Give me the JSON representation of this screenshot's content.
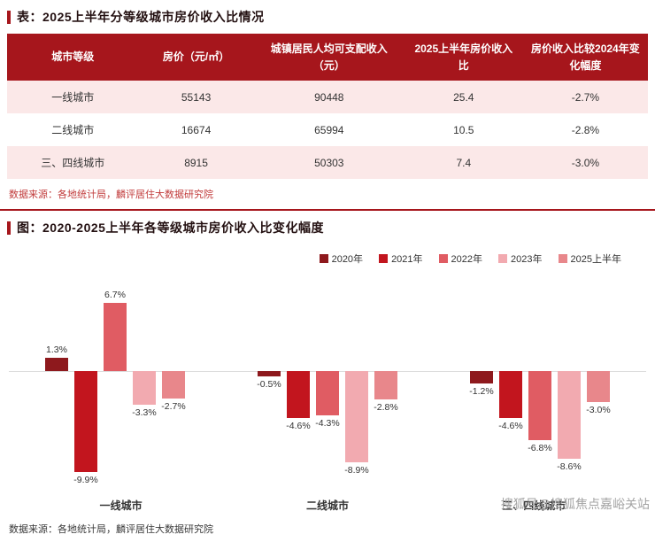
{
  "page": {
    "table_section": {
      "title": "表：2025上半年分等级城市房价收入比情况",
      "source": "数据来源：各地统计局，麟评居住大数据研究院"
    },
    "chart_section": {
      "title": "图：2020-2025上半年各等级城市房价收入比变化幅度",
      "source": "数据来源：各地统计局，麟评居住大数据研究院"
    },
    "watermark": "搜狐号@搜狐焦点嘉峪关站"
  },
  "table": {
    "headers": [
      "城市等级",
      "房价（元/㎡）",
      "城镇居民人均可支配收入（元）",
      "2025上半年房价收入比",
      "房价收入比较2024年变化幅度"
    ],
    "rows": [
      [
        "一线城市",
        "55143",
        "90448",
        "25.4",
        "-2.7%"
      ],
      [
        "二线城市",
        "16674",
        "65994",
        "10.5",
        "-2.8%"
      ],
      [
        "三、四线城市",
        "8915",
        "50303",
        "7.4",
        "-3.0%"
      ]
    ]
  },
  "chart_data": {
    "type": "bar",
    "title": "图：2020-2025上半年各等级城市房价收入比变化幅度",
    "categories": [
      "一线城市",
      "二线城市",
      "三、四线城市"
    ],
    "series": [
      {
        "name": "2020年",
        "color": "#8e191d",
        "values": [
          1.3,
          -0.5,
          -1.2
        ]
      },
      {
        "name": "2021年",
        "color": "#c2151e",
        "values": [
          -9.9,
          -4.6,
          -4.6
        ]
      },
      {
        "name": "2022年",
        "color": "#e05c63",
        "values": [
          6.7,
          -4.3,
          -6.8
        ]
      },
      {
        "name": "2023年",
        "color": "#f2aab0",
        "values": [
          -3.3,
          -8.9,
          -8.6
        ]
      },
      {
        "name": "2025上半年",
        "color": "#e8878b",
        "values": [
          -2.7,
          -2.8,
          -3.0
        ]
      }
    ],
    "value_suffix": "%",
    "ylim": [
      -11,
      8
    ],
    "legend_position": "top-right",
    "grid": false,
    "zero_line": true
  },
  "colors": {
    "header_bg": "#a6161c",
    "row_alt_bg": "#fbe8e8",
    "accent": "#a6161c",
    "source_text": "#c13b3b"
  }
}
